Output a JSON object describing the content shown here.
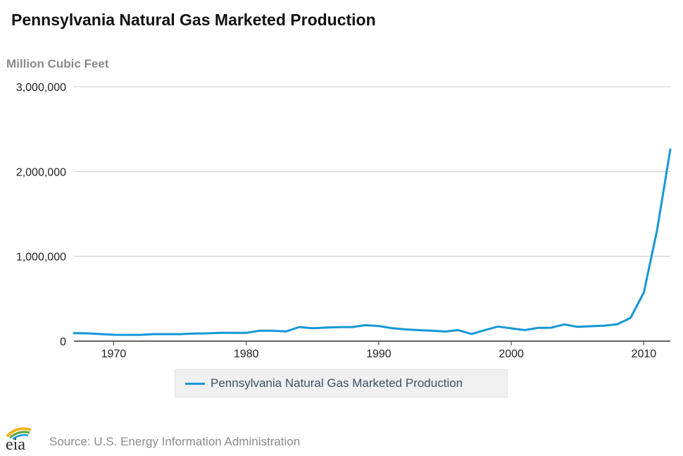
{
  "title": "Pennsylvania Natural Gas Marketed Production",
  "source": "Source: U.S. Energy Information Administration",
  "logo_text": "eia",
  "colors": {
    "series": "#1497d7",
    "grid": "#c8c8c8",
    "axis": "#333333"
  },
  "chart_data": {
    "type": "line",
    "title": "Pennsylvania Natural Gas Marketed Production",
    "ylabel": "Million Cubic Feet",
    "xlabel": "",
    "ylim": [
      0,
      3000000
    ],
    "xlim": [
      1967,
      2012
    ],
    "yticks": [
      0,
      1000000,
      2000000,
      3000000
    ],
    "ytick_labels": [
      "0",
      "1,000,000",
      "2,000,000",
      "3,000,000"
    ],
    "xticks": [
      1970,
      1980,
      1990,
      2000,
      2010
    ],
    "grid": true,
    "legend_position": "bottom",
    "series": [
      {
        "name": "Pennsylvania Natural Gas Marketed Production",
        "x": [
          1967,
          1968,
          1969,
          1970,
          1971,
          1972,
          1973,
          1974,
          1975,
          1976,
          1977,
          1978,
          1979,
          1980,
          1981,
          1982,
          1983,
          1984,
          1985,
          1986,
          1987,
          1988,
          1989,
          1990,
          1991,
          1992,
          1993,
          1994,
          1995,
          1996,
          1997,
          1998,
          1999,
          2000,
          2001,
          2002,
          2003,
          2004,
          2005,
          2006,
          2007,
          2008,
          2009,
          2010,
          2011,
          2012
        ],
        "y": [
          93000,
          92000,
          83000,
          75000,
          74000,
          74000,
          82000,
          82000,
          82000,
          90000,
          91000,
          98000,
          97000,
          97000,
          122000,
          122000,
          114000,
          166000,
          151000,
          159000,
          165000,
          166000,
          188000,
          178000,
          153000,
          138000,
          130000,
          122000,
          113000,
          130000,
          84000,
          130000,
          172000,
          150000,
          130000,
          156000,
          158000,
          197000,
          168000,
          175000,
          182000,
          199000,
          274000,
          573000,
          1310000,
          2260000
        ]
      }
    ]
  }
}
